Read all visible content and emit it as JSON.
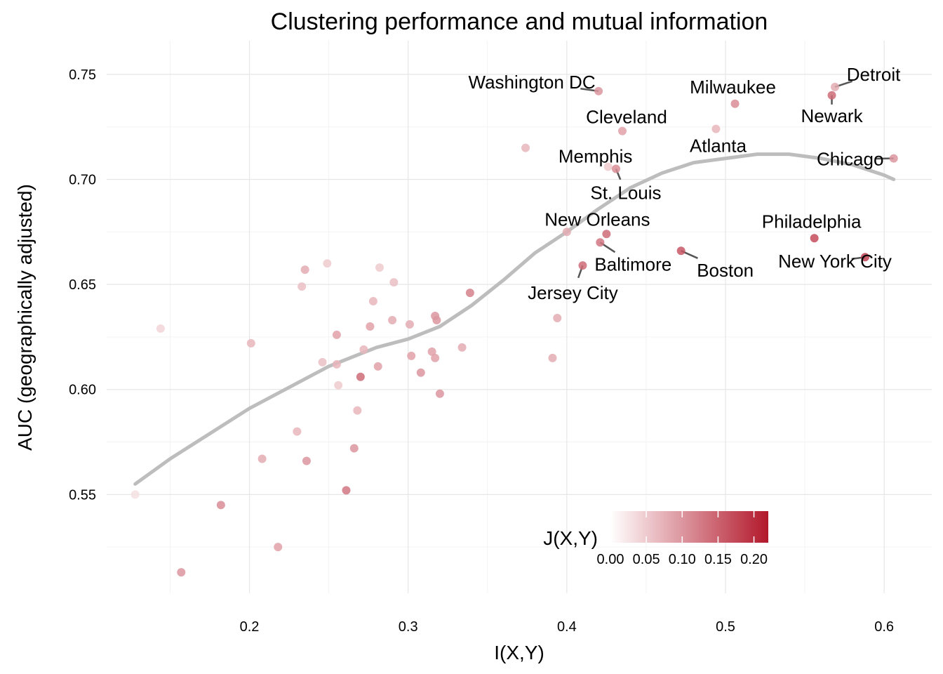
{
  "chart_data": {
    "type": "scatter",
    "title": "Clustering performance and mutual information",
    "xlabel": "I(X,Y)",
    "ylabel": "AUC (geographically adjusted)",
    "xlim": [
      0.11,
      0.63
    ],
    "ylim": [
      0.503,
      0.766
    ],
    "x_ticks": [
      0.2,
      0.3,
      0.4,
      0.5,
      0.6
    ],
    "x_tick_labels": [
      "0.2",
      "0.3",
      "0.4",
      "0.5",
      "0.6"
    ],
    "y_ticks": [
      0.55,
      0.6,
      0.65,
      0.7,
      0.75
    ],
    "y_tick_labels": [
      "0.55",
      "0.60",
      "0.65",
      "0.70",
      "0.75"
    ],
    "grid": true,
    "color_scale": {
      "title": "J(X,Y)",
      "min": 0.0,
      "max": 0.22,
      "low_color": "#ffffff",
      "high_color": "#b2182b",
      "ticks": [
        0.0,
        0.05,
        0.1,
        0.15,
        0.2
      ],
      "tick_labels": [
        "0.00",
        "0.05",
        "0.10",
        "0.15",
        "0.20"
      ],
      "placement": "bottom-right"
    },
    "points": [
      {
        "x": 0.128,
        "y": 0.55,
        "j": 0.03
      },
      {
        "x": 0.144,
        "y": 0.629,
        "j": 0.04
      },
      {
        "x": 0.157,
        "y": 0.513,
        "j": 0.1
      },
      {
        "x": 0.182,
        "y": 0.545,
        "j": 0.11
      },
      {
        "x": 0.201,
        "y": 0.622,
        "j": 0.07
      },
      {
        "x": 0.208,
        "y": 0.567,
        "j": 0.08
      },
      {
        "x": 0.218,
        "y": 0.525,
        "j": 0.09
      },
      {
        "x": 0.23,
        "y": 0.58,
        "j": 0.07
      },
      {
        "x": 0.233,
        "y": 0.649,
        "j": 0.06
      },
      {
        "x": 0.235,
        "y": 0.657,
        "j": 0.08
      },
      {
        "x": 0.236,
        "y": 0.566,
        "j": 0.1
      },
      {
        "x": 0.246,
        "y": 0.613,
        "j": 0.06
      },
      {
        "x": 0.249,
        "y": 0.66,
        "j": 0.05
      },
      {
        "x": 0.255,
        "y": 0.626,
        "j": 0.09
      },
      {
        "x": 0.255,
        "y": 0.612,
        "j": 0.07
      },
      {
        "x": 0.256,
        "y": 0.602,
        "j": 0.05
      },
      {
        "x": 0.261,
        "y": 0.552,
        "j": 0.13
      },
      {
        "x": 0.266,
        "y": 0.572,
        "j": 0.1
      },
      {
        "x": 0.268,
        "y": 0.59,
        "j": 0.07
      },
      {
        "x": 0.27,
        "y": 0.606,
        "j": 0.14
      },
      {
        "x": 0.272,
        "y": 0.619,
        "j": 0.07
      },
      {
        "x": 0.276,
        "y": 0.63,
        "j": 0.09
      },
      {
        "x": 0.278,
        "y": 0.642,
        "j": 0.07
      },
      {
        "x": 0.281,
        "y": 0.611,
        "j": 0.09
      },
      {
        "x": 0.282,
        "y": 0.658,
        "j": 0.05
      },
      {
        "x": 0.29,
        "y": 0.633,
        "j": 0.08
      },
      {
        "x": 0.291,
        "y": 0.651,
        "j": 0.06
      },
      {
        "x": 0.301,
        "y": 0.631,
        "j": 0.08
      },
      {
        "x": 0.302,
        "y": 0.616,
        "j": 0.09
      },
      {
        "x": 0.308,
        "y": 0.608,
        "j": 0.1
      },
      {
        "x": 0.315,
        "y": 0.618,
        "j": 0.09
      },
      {
        "x": 0.317,
        "y": 0.615,
        "j": 0.09
      },
      {
        "x": 0.317,
        "y": 0.635,
        "j": 0.1
      },
      {
        "x": 0.318,
        "y": 0.633,
        "j": 0.1
      },
      {
        "x": 0.32,
        "y": 0.598,
        "j": 0.1
      },
      {
        "x": 0.334,
        "y": 0.62,
        "j": 0.08
      },
      {
        "x": 0.339,
        "y": 0.646,
        "j": 0.12
      },
      {
        "x": 0.374,
        "y": 0.715,
        "j": 0.07
      },
      {
        "x": 0.391,
        "y": 0.615,
        "j": 0.08
      },
      {
        "x": 0.394,
        "y": 0.634,
        "j": 0.08
      },
      {
        "x": 0.4,
        "y": 0.675,
        "j": 0.08
      },
      {
        "x": 0.41,
        "y": 0.659,
        "j": 0.14,
        "label": "Jersey City"
      },
      {
        "x": 0.42,
        "y": 0.742,
        "j": 0.1,
        "label": "Washington DC"
      },
      {
        "x": 0.421,
        "y": 0.67,
        "j": 0.13,
        "label": "Baltimore"
      },
      {
        "x": 0.425,
        "y": 0.674,
        "j": 0.14,
        "label": "New Orleans"
      },
      {
        "x": 0.426,
        "y": 0.706,
        "j": 0.05,
        "label": "Memphis"
      },
      {
        "x": 0.431,
        "y": 0.705,
        "j": 0.11,
        "label": "St. Louis"
      },
      {
        "x": 0.435,
        "y": 0.723,
        "j": 0.09,
        "label": "Cleveland"
      },
      {
        "x": 0.472,
        "y": 0.666,
        "j": 0.16,
        "label": "Boston"
      },
      {
        "x": 0.494,
        "y": 0.724,
        "j": 0.07,
        "label": "Atlanta"
      },
      {
        "x": 0.506,
        "y": 0.736,
        "j": 0.11,
        "label": "Milwaukee"
      },
      {
        "x": 0.556,
        "y": 0.672,
        "j": 0.17,
        "label": "Philadelphia"
      },
      {
        "x": 0.567,
        "y": 0.74,
        "j": 0.14,
        "label": "Newark"
      },
      {
        "x": 0.569,
        "y": 0.744,
        "j": 0.08,
        "label": "Detroit"
      },
      {
        "x": 0.588,
        "y": 0.663,
        "j": 0.18,
        "label": "New York City"
      },
      {
        "x": 0.606,
        "y": 0.71,
        "j": 0.1,
        "label": "Chicago"
      }
    ],
    "smooth": {
      "x": [
        0.128,
        0.15,
        0.2,
        0.25,
        0.28,
        0.3,
        0.32,
        0.34,
        0.36,
        0.38,
        0.4,
        0.42,
        0.44,
        0.46,
        0.48,
        0.5,
        0.52,
        0.54,
        0.56,
        0.58,
        0.6,
        0.606
      ],
      "y": [
        0.555,
        0.567,
        0.591,
        0.611,
        0.62,
        0.624,
        0.63,
        0.64,
        0.652,
        0.665,
        0.675,
        0.686,
        0.696,
        0.703,
        0.708,
        0.71,
        0.712,
        0.712,
        0.71,
        0.707,
        0.702,
        0.7
      ]
    }
  }
}
